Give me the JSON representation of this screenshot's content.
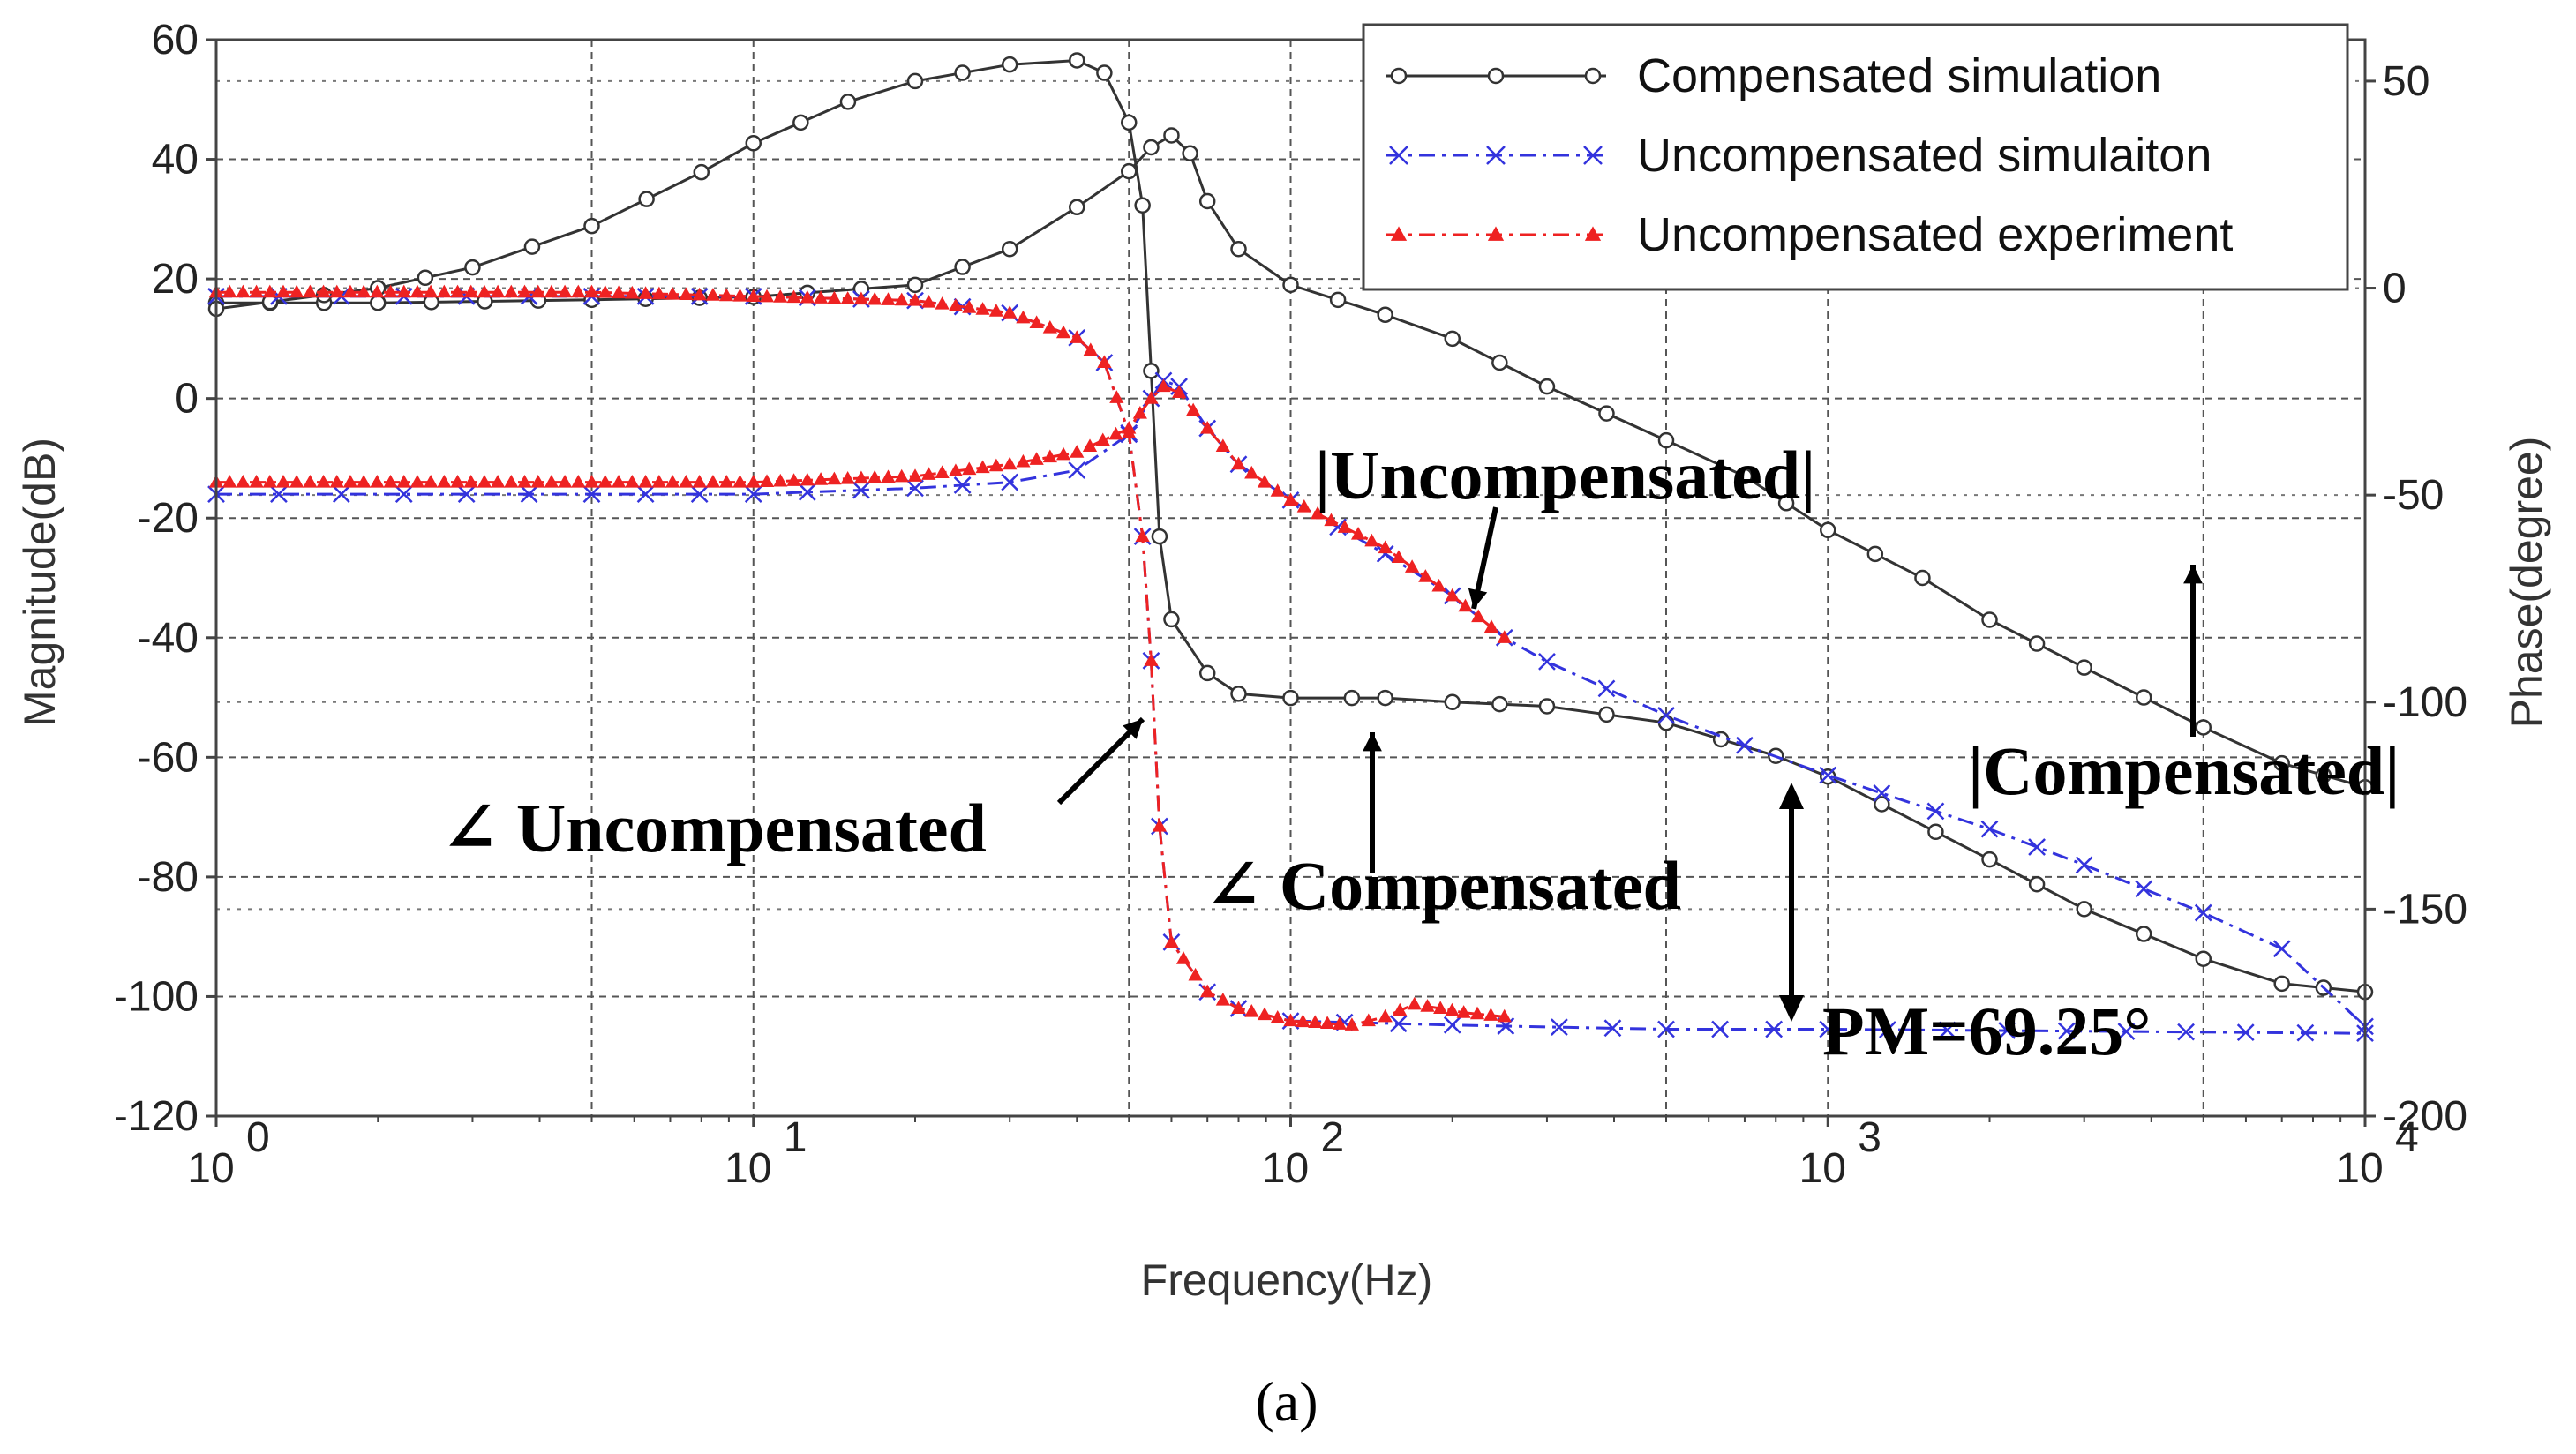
{
  "chart_data": {
    "type": "line",
    "title": "",
    "caption": "(a)",
    "xlabel": "Frequency(Hz)",
    "ylabel": "Magnitude(dB)",
    "y2label": "Phase(degree)",
    "xscale": "log",
    "xlim": [
      1,
      10000
    ],
    "ylim": [
      -120,
      60
    ],
    "y2lim": [
      -200,
      60
    ],
    "grid": true,
    "legend_position": "top-right",
    "x_ticks": [
      {
        "value": 1,
        "base": "10",
        "exp": "0"
      },
      {
        "value": 10,
        "base": "10",
        "exp": "1"
      },
      {
        "value": 100,
        "base": "10",
        "exp": "2"
      },
      {
        "value": 1000,
        "base": "10",
        "exp": "3"
      },
      {
        "value": 10000,
        "base": "10",
        "exp": "4"
      }
    ],
    "y_ticks": [
      {
        "value": 60,
        "label": "60"
      },
      {
        "value": 40,
        "label": "40"
      },
      {
        "value": 20,
        "label": "20"
      },
      {
        "value": 0,
        "label": "0"
      },
      {
        "value": -20,
        "label": "-20"
      },
      {
        "value": -40,
        "label": "-40"
      },
      {
        "value": -60,
        "label": "-60"
      },
      {
        "value": -80,
        "label": "-80"
      },
      {
        "value": -100,
        "label": "-100"
      },
      {
        "value": -120,
        "label": "-120"
      }
    ],
    "y2_ticks": [
      {
        "value": 50,
        "label": "50"
      },
      {
        "value": 0,
        "label": "0"
      },
      {
        "value": -50,
        "label": "-50"
      },
      {
        "value": -100,
        "label": "-100"
      },
      {
        "value": -150,
        "label": "-150"
      },
      {
        "value": -200,
        "label": "-200"
      }
    ],
    "series": [
      {
        "name": "Compensated simulation",
        "color": "#333333",
        "marker": "circle",
        "line_style": "solid",
        "curves": [
          {
            "quantity": "magnitude",
            "axis": "left",
            "points": [
              [
                1,
                16
              ],
              [
                2,
                16
              ],
              [
                5,
                16.5
              ],
              [
                10,
                17
              ],
              [
                20,
                19
              ],
              [
                30,
                25
              ],
              [
                40,
                32
              ],
              [
                50,
                38
              ],
              [
                55,
                42
              ],
              [
                60,
                44
              ],
              [
                65,
                41
              ],
              [
                70,
                33
              ],
              [
                80,
                25
              ],
              [
                100,
                19
              ],
              [
                150,
                14
              ],
              [
                200,
                10
              ],
              [
                300,
                2
              ],
              [
                500,
                -7
              ],
              [
                700,
                -13
              ],
              [
                1000,
                -22
              ],
              [
                1500,
                -30
              ],
              [
                2000,
                -37
              ],
              [
                3000,
                -45
              ],
              [
                5000,
                -55
              ],
              [
                7000,
                -61
              ],
              [
                10000,
                -65
              ]
            ]
          },
          {
            "quantity": "phase",
            "axis": "right",
            "points": [
              [
                1,
                -5
              ],
              [
                2,
                0
              ],
              [
                3,
                5
              ],
              [
                5,
                15
              ],
              [
                8,
                28
              ],
              [
                10,
                35
              ],
              [
                15,
                45
              ],
              [
                20,
                50
              ],
              [
                30,
                54
              ],
              [
                40,
                55
              ],
              [
                45,
                52
              ],
              [
                50,
                40
              ],
              [
                53,
                20
              ],
              [
                55,
                -20
              ],
              [
                57,
                -60
              ],
              [
                60,
                -80
              ],
              [
                70,
                -93
              ],
              [
                80,
                -98
              ],
              [
                100,
                -99
              ],
              [
                130,
                -99
              ],
              [
                150,
                -99
              ],
              [
                200,
                -100
              ],
              [
                300,
                -101
              ],
              [
                500,
                -105
              ],
              [
                800,
                -113
              ],
              [
                1000,
                -118
              ],
              [
                2000,
                -138
              ],
              [
                3000,
                -150
              ],
              [
                5000,
                -162
              ],
              [
                7000,
                -168
              ],
              [
                10000,
                -170
              ]
            ]
          }
        ]
      },
      {
        "name": "Uncompensated simulaiton",
        "color": "#3333dd",
        "marker": "x",
        "line_style": "dash-dot",
        "curves": [
          {
            "quantity": "magnitude",
            "axis": "left",
            "points": [
              [
                1,
                -16
              ],
              [
                5,
                -16
              ],
              [
                10,
                -16
              ],
              [
                20,
                -15
              ],
              [
                30,
                -14
              ],
              [
                40,
                -12
              ],
              [
                50,
                -6
              ],
              [
                55,
                0
              ],
              [
                58,
                3
              ],
              [
                62,
                2
              ],
              [
                70,
                -5
              ],
              [
                80,
                -11
              ],
              [
                100,
                -17
              ],
              [
                150,
                -26
              ],
              [
                200,
                -33
              ],
              [
                250,
                -40
              ],
              [
                300,
                -44
              ],
              [
                500,
                -53
              ],
              [
                700,
                -58
              ],
              [
                1000,
                -63
              ],
              [
                2000,
                -72
              ],
              [
                3000,
                -78
              ],
              [
                5000,
                -86
              ],
              [
                7000,
                -92
              ],
              [
                10000,
                -105
              ]
            ]
          },
          {
            "quantity": "phase",
            "axis": "right",
            "points": [
              [
                1,
                -2
              ],
              [
                5,
                -2
              ],
              [
                10,
                -2
              ],
              [
                20,
                -3
              ],
              [
                30,
                -6
              ],
              [
                40,
                -12
              ],
              [
                45,
                -18
              ],
              [
                50,
                -35
              ],
              [
                53,
                -60
              ],
              [
                55,
                -90
              ],
              [
                57,
                -130
              ],
              [
                60,
                -158
              ],
              [
                70,
                -170
              ],
              [
                80,
                -174
              ],
              [
                100,
                -177
              ],
              [
                200,
                -178
              ],
              [
                500,
                -179
              ],
              [
                1000,
                -179
              ],
              [
                10000,
                -180
              ]
            ]
          }
        ]
      },
      {
        "name": "Uncompensated experiment",
        "color": "#ee2222",
        "marker": "triangle",
        "line_style": "dash-dot",
        "curves": [
          {
            "quantity": "magnitude",
            "axis": "left",
            "points": [
              [
                1,
                -14
              ],
              [
                5,
                -14
              ],
              [
                10,
                -14
              ],
              [
                20,
                -13
              ],
              [
                30,
                -11
              ],
              [
                40,
                -9
              ],
              [
                50,
                -5
              ],
              [
                55,
                0
              ],
              [
                58,
                2
              ],
              [
                62,
                1
              ],
              [
                70,
                -5
              ],
              [
                80,
                -11
              ],
              [
                100,
                -17
              ],
              [
                150,
                -25
              ],
              [
                200,
                -33
              ],
              [
                250,
                -40
              ]
            ]
          },
          {
            "quantity": "phase",
            "axis": "right",
            "points": [
              [
                1,
                -1
              ],
              [
                5,
                -1
              ],
              [
                10,
                -2
              ],
              [
                20,
                -3
              ],
              [
                30,
                -6
              ],
              [
                40,
                -12
              ],
              [
                45,
                -18
              ],
              [
                50,
                -35
              ],
              [
                53,
                -60
              ],
              [
                55,
                -90
              ],
              [
                57,
                -130
              ],
              [
                60,
                -158
              ],
              [
                70,
                -170
              ],
              [
                80,
                -174
              ],
              [
                100,
                -177
              ],
              [
                130,
                -178
              ],
              [
                150,
                -176
              ],
              [
                170,
                -173
              ],
              [
                190,
                -174
              ],
              [
                210,
                -175
              ],
              [
                250,
                -176
              ]
            ]
          }
        ]
      }
    ],
    "annotations": [
      {
        "text": "|Uncompensated|",
        "x": 210,
        "y": -30
      },
      {
        "text": "|Compensated|",
        "x": 3000,
        "y": -62
      },
      {
        "text": "∠ Uncompensated",
        "x": 10,
        "y": -70
      },
      {
        "text": "∠ Compensated",
        "x": 100,
        "y": -83
      },
      {
        "text": "PM=69.25°",
        "x": 1000,
        "y": -104
      }
    ]
  }
}
